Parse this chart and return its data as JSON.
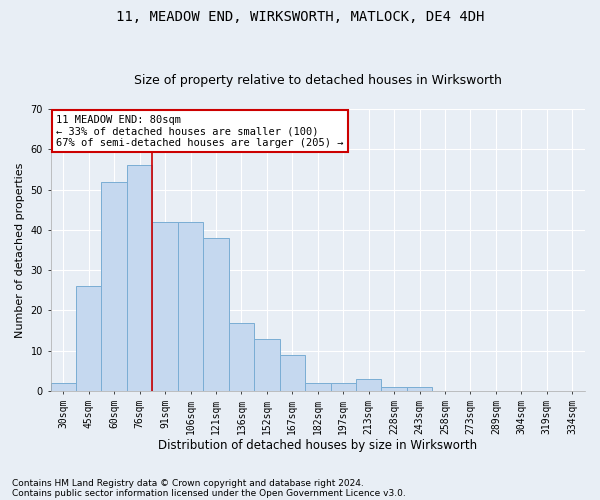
{
  "title1": "11, MEADOW END, WIRKSWORTH, MATLOCK, DE4 4DH",
  "title2": "Size of property relative to detached houses in Wirksworth",
  "xlabel": "Distribution of detached houses by size in Wirksworth",
  "ylabel": "Number of detached properties",
  "categories": [
    "30sqm",
    "45sqm",
    "60sqm",
    "76sqm",
    "91sqm",
    "106sqm",
    "121sqm",
    "136sqm",
    "152sqm",
    "167sqm",
    "182sqm",
    "197sqm",
    "213sqm",
    "228sqm",
    "243sqm",
    "258sqm",
    "273sqm",
    "289sqm",
    "304sqm",
    "319sqm",
    "334sqm"
  ],
  "values": [
    2,
    26,
    52,
    56,
    42,
    42,
    38,
    17,
    13,
    9,
    2,
    2,
    3,
    1,
    1,
    0,
    0,
    0,
    0,
    0,
    0
  ],
  "bar_color": "#c5d8ef",
  "bar_edge_color": "#7aadd4",
  "vline_x": 3.5,
  "vline_color": "#cc0000",
  "annotation_text": "11 MEADOW END: 80sqm\n← 33% of detached houses are smaller (100)\n67% of semi-detached houses are larger (205) →",
  "annotation_box_color": "#ffffff",
  "annotation_box_edge_color": "#cc0000",
  "ylim": [
    0,
    70
  ],
  "yticks": [
    0,
    10,
    20,
    30,
    40,
    50,
    60,
    70
  ],
  "footnote1": "Contains HM Land Registry data © Crown copyright and database right 2024.",
  "footnote2": "Contains public sector information licensed under the Open Government Licence v3.0.",
  "bg_color": "#e8eef5",
  "grid_color": "#ffffff",
  "title1_fontsize": 10,
  "title2_fontsize": 9,
  "xlabel_fontsize": 8.5,
  "ylabel_fontsize": 8,
  "tick_fontsize": 7,
  "annotation_fontsize": 7.5,
  "footnote_fontsize": 6.5
}
